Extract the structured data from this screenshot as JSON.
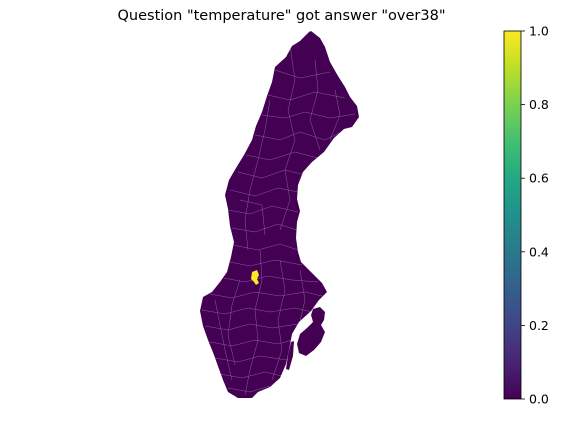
{
  "title": "Question \"temperature\" got answer \"over38\"",
  "colorbar": {
    "colormap": "viridis",
    "min": 0.0,
    "max": 1.0,
    "ticks": [
      "0.0",
      "0.2",
      "0.4",
      "0.6",
      "0.8",
      "1.0"
    ],
    "tick_values": [
      0.0,
      0.2,
      0.4,
      0.6,
      0.8,
      1.0
    ]
  },
  "map": {
    "region": "Sweden municipalities",
    "base_value": 0.0,
    "highlighted_value": 1.0,
    "colors": {
      "low": "#440154",
      "high": "#fde725",
      "borders": "#9a7fb0"
    }
  }
}
